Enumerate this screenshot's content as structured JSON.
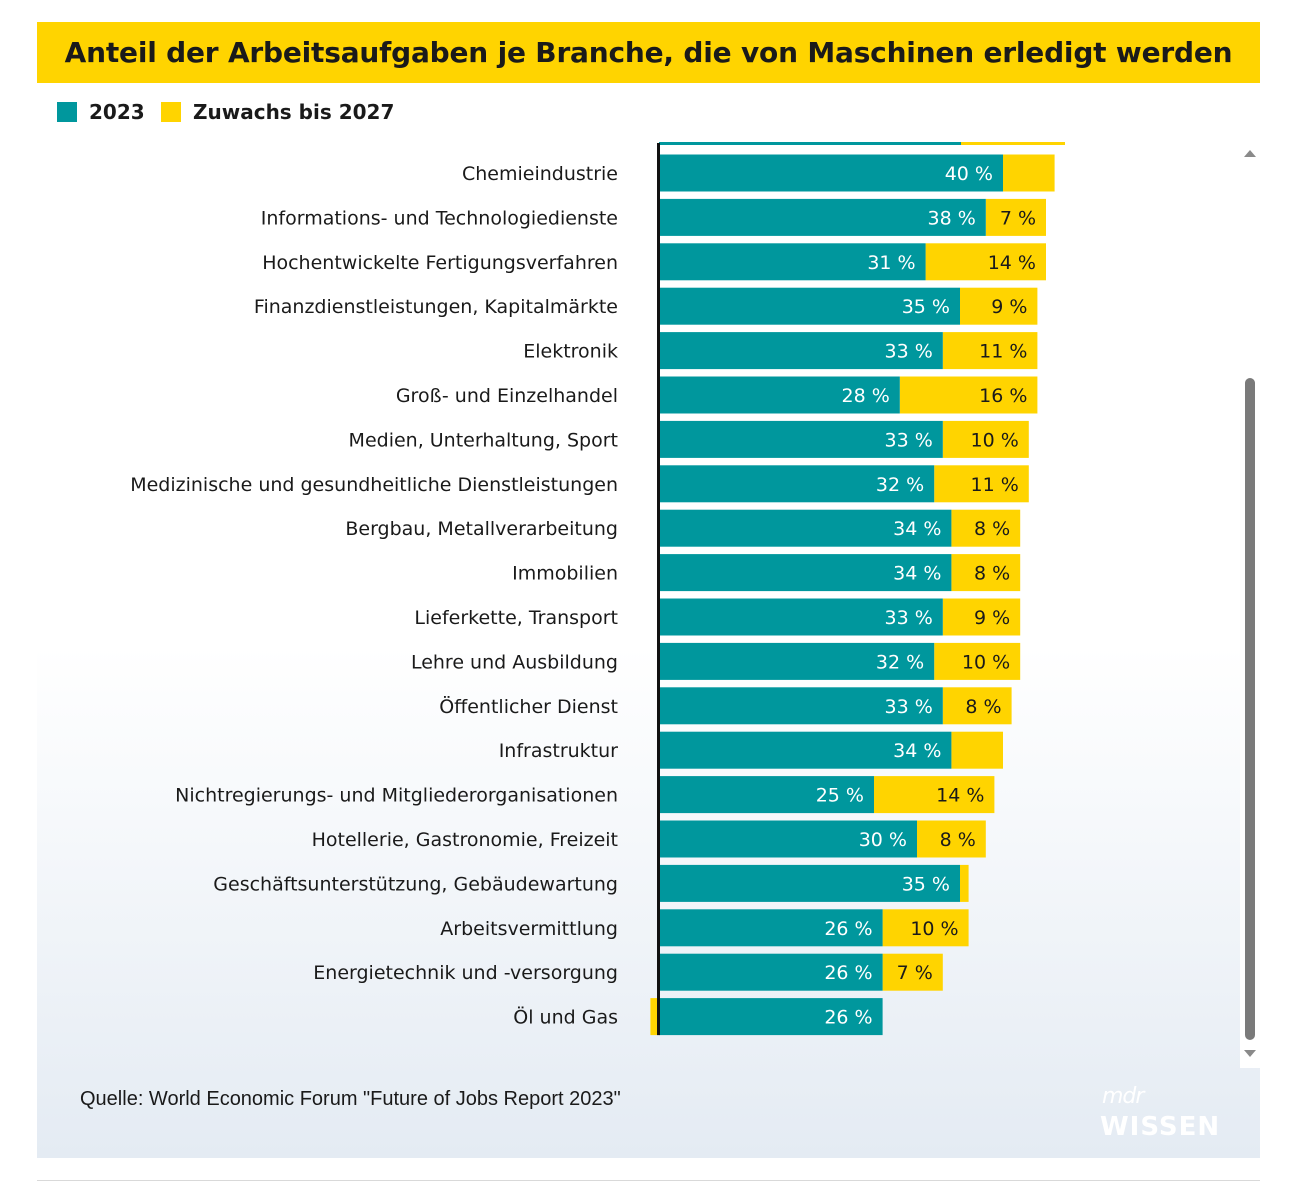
{
  "title": "Anteil der Arbeitsaufgaben je Branche, die von Maschinen erledigt werden",
  "legend": {
    "series1_label": "2023",
    "series2_label": "Zuwachs bis 2027"
  },
  "colors": {
    "teal": "#00979d",
    "yellow": "#ffd400",
    "title_bg": "#ffd400",
    "text": "#1a1a1a",
    "label_on_bar": "#ffffff",
    "label_on_yellow": "#1a1a1a"
  },
  "source": "Quelle: World Economic Forum \"Future of Jobs Report 2023\"",
  "logo": {
    "top": "mdr",
    "bottom": "WISSEN"
  },
  "chart_data": {
    "type": "bar",
    "orientation": "horizontal",
    "stacked": true,
    "categories": [
      "Chemieindustrie",
      "Informations- und Technologiedienste",
      "Hochentwickelte Fertigungsverfahren",
      "Finanzdienstleistungen, Kapitalmärkte",
      "Elektronik",
      "Groß- und Einzelhandel",
      "Medien, Unterhaltung, Sport",
      "Medizinische und gesundheitliche Dienstleistungen",
      "Bergbau, Metallverarbeitung",
      "Immobilien",
      "Lieferkette, Transport",
      "Lehre und Ausbildung",
      "Öffentlicher Dienst",
      "Infrastruktur",
      "Nichtregierungs- und Mitgliederorganisationen",
      "Hotellerie, Gastronomie, Freizeit",
      "Geschäftsunterstützung, Gebäudewartung",
      "Arbeitsvermittlung",
      "Energietechnik und -versorgung",
      "Öl und Gas"
    ],
    "series": [
      {
        "name": "2023",
        "values": [
          40,
          38,
          31,
          35,
          33,
          28,
          33,
          32,
          34,
          34,
          33,
          32,
          33,
          34,
          25,
          30,
          35,
          26,
          26,
          26
        ],
        "labels": [
          "40 %",
          "38 %",
          "31 %",
          "35 %",
          "33 %",
          "28 %",
          "33 %",
          "32 %",
          "34 %",
          "34 %",
          "33 %",
          "32 %",
          "33 %",
          "34 %",
          "25 %",
          "30 %",
          "35 %",
          "26 %",
          "26 %",
          "26 %"
        ]
      },
      {
        "name": "Zuwachs bis 2027",
        "values": [
          6,
          7,
          14,
          9,
          11,
          16,
          10,
          11,
          8,
          8,
          9,
          10,
          8,
          6,
          14,
          8,
          1,
          10,
          7,
          -1
        ],
        "labels": [
          "",
          "7 %",
          "14 %",
          "9 %",
          "11 %",
          "16 %",
          "10 %",
          "11 %",
          "8 %",
          "8 %",
          "9 %",
          "10 %",
          "8 %",
          "",
          "14 %",
          "8 %",
          "",
          "10 %",
          "7 %",
          ""
        ]
      }
    ],
    "xlim": [
      0,
      46
    ],
    "grid": false,
    "legend_position": "top-left"
  }
}
